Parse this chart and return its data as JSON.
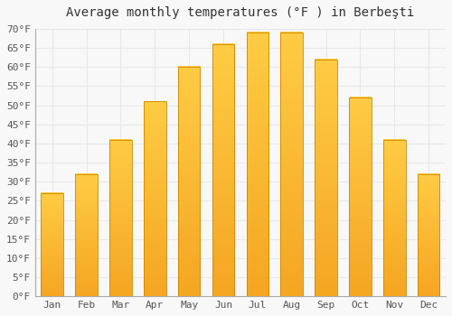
{
  "title": "Average monthly temperatures (°F ) in Berbeşti",
  "months": [
    "Jan",
    "Feb",
    "Mar",
    "Apr",
    "May",
    "Jun",
    "Jul",
    "Aug",
    "Sep",
    "Oct",
    "Nov",
    "Dec"
  ],
  "values": [
    27,
    32,
    41,
    51,
    60,
    66,
    69,
    69,
    62,
    52,
    41,
    32
  ],
  "bar_color_top": "#FFCC44",
  "bar_color_bottom": "#F5A623",
  "bar_edge_color": "#CC8800",
  "ylim": [
    0,
    70
  ],
  "yticks": [
    0,
    5,
    10,
    15,
    20,
    25,
    30,
    35,
    40,
    45,
    50,
    55,
    60,
    65,
    70
  ],
  "ytick_labels": [
    "0°F",
    "5°F",
    "10°F",
    "15°F",
    "20°F",
    "25°F",
    "30°F",
    "35°F",
    "40°F",
    "45°F",
    "50°F",
    "55°F",
    "60°F",
    "65°F",
    "70°F"
  ],
  "grid_color": "#E8E8E8",
  "background_color": "#F8F8F8",
  "plot_bg_color": "#F8F8F8",
  "title_fontsize": 10,
  "tick_fontsize": 8
}
